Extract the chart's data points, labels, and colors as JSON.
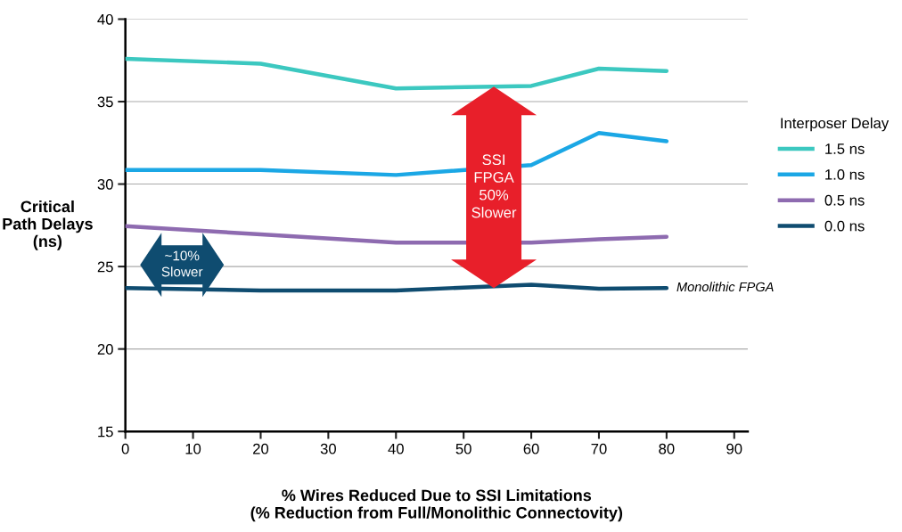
{
  "chart_data": {
    "type": "line",
    "xlabel": "% Wires Reduced Due to SSI Limitations\n(% Reduction from Full/Monolithic Connectovity)",
    "ylabel": "Critical\nPath Delays\n(ns)",
    "legend_title": "Interposer Delay",
    "x": [
      0,
      20,
      40,
      60,
      70,
      80
    ],
    "series": [
      {
        "name": "1.5 ns",
        "color": "#3cc8c0",
        "values": [
          37.6,
          37.3,
          35.8,
          35.95,
          37.0,
          36.85
        ]
      },
      {
        "name": "1.0 ns",
        "color": "#1ba7e5",
        "values": [
          30.85,
          30.85,
          30.55,
          31.15,
          33.1,
          32.6
        ]
      },
      {
        "name": "0.5 ns",
        "color": "#8e6bb0",
        "values": [
          27.45,
          26.95,
          26.45,
          26.45,
          26.65,
          26.8
        ]
      },
      {
        "name": "0.0 ns",
        "color": "#0f4c70",
        "values": [
          23.7,
          23.55,
          23.55,
          23.9,
          23.65,
          23.7
        ]
      }
    ],
    "annotations": [
      "SSI\nFPGA\n50%\nSlower",
      "~10%\nSlower",
      {
        "text": "Monolithic FPGA",
        "x": 80,
        "y": 23.7
      }
    ],
    "xlim": [
      0,
      92
    ],
    "ylim": [
      15,
      40
    ],
    "xticks": [
      0,
      10,
      20,
      30,
      40,
      50,
      60,
      70,
      80,
      90
    ],
    "yticks": [
      15,
      20,
      25,
      30,
      35,
      40
    ],
    "grid": "y",
    "legend": "right",
    "marker": "none",
    "line_style": "solid"
  }
}
